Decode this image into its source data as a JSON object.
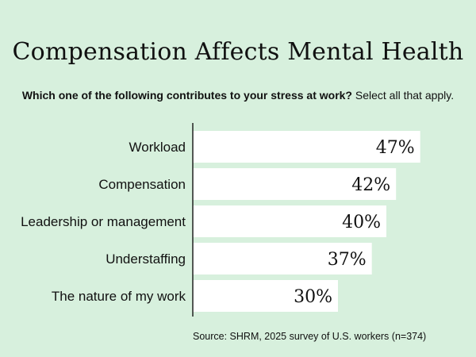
{
  "title": "Compensation Affects Mental Health",
  "subtitle": {
    "question": "Which one of the following contributes to your stress at work?",
    "note": "Select all that apply."
  },
  "source": "Source: SHRM, 2025 survey of U.S. workers (n=374)",
  "colors": {
    "background": "#d7f0dd",
    "bar": "#ffffff",
    "axis": "#222222"
  },
  "chart_data": {
    "type": "bar",
    "orientation": "horizontal",
    "categories": [
      "Workload",
      "Compensation",
      "Leadership or management",
      "Understaffing",
      "The nature of my work"
    ],
    "values": [
      47,
      42,
      40,
      37,
      30
    ],
    "value_labels": [
      "47%",
      "42%",
      "40%",
      "37%",
      "30%"
    ],
    "xlim": [
      0,
      50
    ],
    "grid": false,
    "legend": "none"
  }
}
